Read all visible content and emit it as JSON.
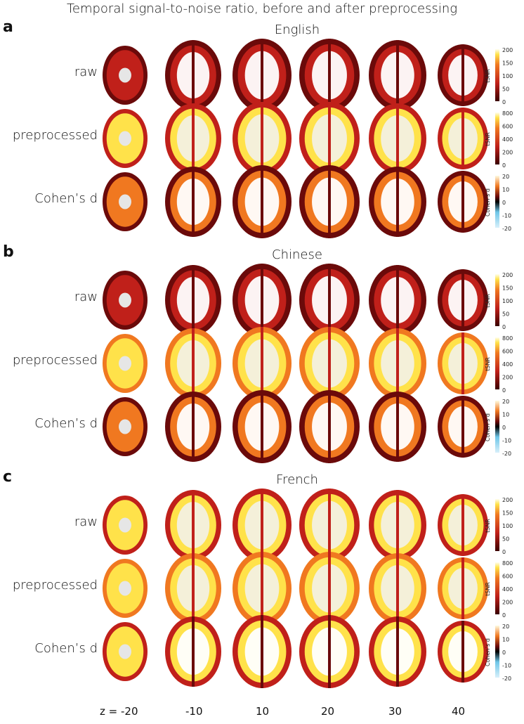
{
  "title": "Temporal signal-to-noise ratio, before and after preprocessing",
  "panels": [
    {
      "letter": "a",
      "language": "English"
    },
    {
      "letter": "b",
      "language": "Chinese"
    },
    {
      "letter": "c",
      "language": "French"
    }
  ],
  "row_labels": [
    "raw",
    "preprocessed",
    "Cohen’s d"
  ],
  "z_axis": {
    "prefix": "z =",
    "values": [
      "-20",
      "-10",
      "10",
      "20",
      "30",
      "40"
    ]
  },
  "colorbars": {
    "raw": {
      "label": "tSNR",
      "ticks": [
        "200",
        "150",
        "100",
        "50",
        "0"
      ],
      "palette": "hot"
    },
    "preprocessed": {
      "label": "tSNR",
      "ticks": [
        "800",
        "600",
        "400",
        "200",
        "0"
      ],
      "palette": "hot"
    },
    "cohens_d": {
      "label": "Cohen’s d",
      "ticks": [
        "20",
        "10",
        "0",
        "-10",
        "-20"
      ],
      "palette": "diverging-hot-cold"
    }
  },
  "colors": {
    "dark_red": "#6b0a0a",
    "red": "#c0201a",
    "orange": "#f07820",
    "yellow": "#ffe24a",
    "white_matter": "#f2f2f2",
    "blue": "#6ec6e8"
  }
}
